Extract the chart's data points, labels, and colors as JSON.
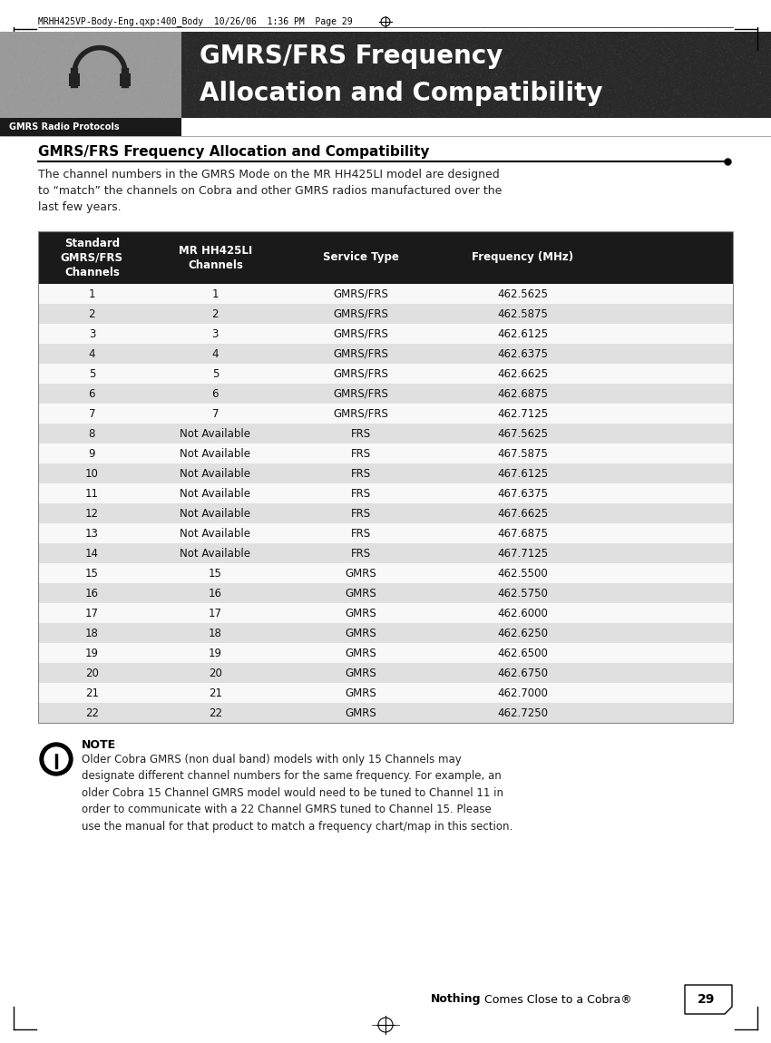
{
  "page_header": "MRHH425VP-Body-Eng.qxp:400_Body  10/26/06  1:36 PM  Page 29",
  "header_title_line1": "GMRS/FRS Frequency",
  "header_title_line2": "Allocation and Compatibility",
  "header_subtitle": "GMRS Radio Protocols",
  "section_title": "GMRS/FRS Frequency Allocation and Compatibility",
  "section_body": "The channel numbers in the GMRS Mode on the MR HH425LI model are designed\nto “match” the channels on Cobra and other GMRS radios manufactured over the\nlast few years.",
  "col_headers": [
    "Standard\nGMRS/FRS\nChannels",
    "MR HH425LI\nChannels",
    "Service Type",
    "Frequency (MHz)"
  ],
  "table_data": [
    [
      "1",
      "1",
      "GMRS/FRS",
      "462.5625"
    ],
    [
      "2",
      "2",
      "GMRS/FRS",
      "462.5875"
    ],
    [
      "3",
      "3",
      "GMRS/FRS",
      "462.6125"
    ],
    [
      "4",
      "4",
      "GMRS/FRS",
      "462.6375"
    ],
    [
      "5",
      "5",
      "GMRS/FRS",
      "462.6625"
    ],
    [
      "6",
      "6",
      "GMRS/FRS",
      "462.6875"
    ],
    [
      "7",
      "7",
      "GMRS/FRS",
      "462.7125"
    ],
    [
      "8",
      "Not Available",
      "FRS",
      "467.5625"
    ],
    [
      "9",
      "Not Available",
      "FRS",
      "467.5875"
    ],
    [
      "10",
      "Not Available",
      "FRS",
      "467.6125"
    ],
    [
      "11",
      "Not Available",
      "FRS",
      "467.6375"
    ],
    [
      "12",
      "Not Available",
      "FRS",
      "467.6625"
    ],
    [
      "13",
      "Not Available",
      "FRS",
      "467.6875"
    ],
    [
      "14",
      "Not Available",
      "FRS",
      "467.7125"
    ],
    [
      "15",
      "15",
      "GMRS",
      "462.5500"
    ],
    [
      "16",
      "16",
      "GMRS",
      "462.5750"
    ],
    [
      "17",
      "17",
      "GMRS",
      "462.6000"
    ],
    [
      "18",
      "18",
      "GMRS",
      "462.6250"
    ],
    [
      "19",
      "19",
      "GMRS",
      "462.6500"
    ],
    [
      "20",
      "20",
      "GMRS",
      "462.6750"
    ],
    [
      "21",
      "21",
      "GMRS",
      "462.7000"
    ],
    [
      "22",
      "22",
      "GMRS",
      "462.7250"
    ]
  ],
  "note_title": "NOTE",
  "note_body": "Older Cobra GMRS (non dual band) models with only 15 Channels may\ndesignate different channel numbers for the same frequency. For example, an\nolder Cobra 15 Channel GMRS model would need to be tuned to Channel 11 in\norder to communicate with a 22 Channel GMRS tuned to Channel 15. Please\nuse the manual for that product to match a frequency chart/map in this section.",
  "footer_text_bold": "Nothing",
  "footer_text_normal": " Comes Close to a Cobra®",
  "footer_page": "29",
  "header_bg_color": "#3a3a3a",
  "header_gray_color": "#9a9a9a",
  "table_header_bg": "#1a1a1a",
  "table_header_fg": "#ffffff",
  "row_even_color": "#e0e0e0",
  "row_odd_color": "#f8f8f8",
  "section_title_color": "#000000",
  "body_text_color": "#222222"
}
